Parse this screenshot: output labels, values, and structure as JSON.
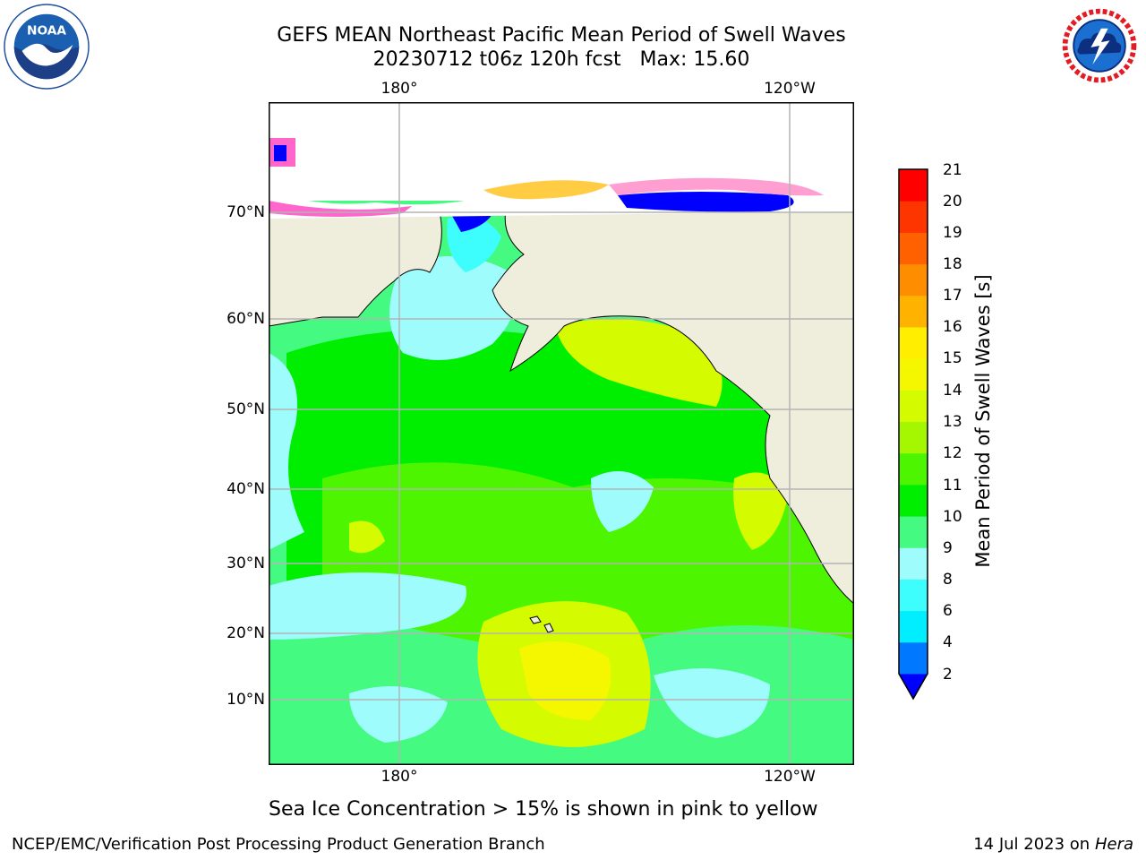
{
  "title": {
    "line1": "GEFS MEAN Northeast Pacific Mean Period of Swell Waves",
    "line2": "20230712 t06z 120h fcst   Max: 15.60"
  },
  "logos": {
    "noaa": {
      "name": "noaa-logo",
      "text": "NOAA"
    },
    "nws": {
      "name": "nws-logo",
      "text": "NATIONAL WEATHER SERVICE"
    }
  },
  "map": {
    "lat_ticks": [
      "70°N",
      "60°N",
      "50°N",
      "40°N",
      "30°N",
      "20°N",
      "10°N"
    ],
    "lon_ticks_top": [
      "180°",
      "120°W"
    ],
    "lon_ticks_bottom": [
      "180°",
      "120°W"
    ],
    "colors": {
      "land": "#efeedd",
      "ice_background": "#ffffff",
      "graticule": "#b4b4b4"
    }
  },
  "colorbar": {
    "title": "Mean Period of Swell Waves [s]",
    "labels": [
      "21",
      "20",
      "19",
      "18",
      "17",
      "16",
      "15",
      "14",
      "13",
      "12",
      "11",
      "10",
      "9",
      "8",
      "6",
      "4",
      "2"
    ],
    "colors": [
      "#0000ff",
      "#0078ff",
      "#00eeff",
      "#3dfdfd",
      "#9efcfc",
      "#45fa80",
      "#00ee00",
      "#4df500",
      "#a4f700",
      "#d4fb00",
      "#f4f700",
      "#ffee00",
      "#ffb300",
      "#ff8d00",
      "#ff6000",
      "#ff3500",
      "#ff0000"
    ]
  },
  "note": "Sea Ice Concentration > 15% is shown in pink to yellow",
  "footer": {
    "left": "NCEP/EMC/Verification Post Processing Product Generation Branch",
    "right_date": "14 Jul 2023 on ",
    "right_host": "Hera"
  }
}
